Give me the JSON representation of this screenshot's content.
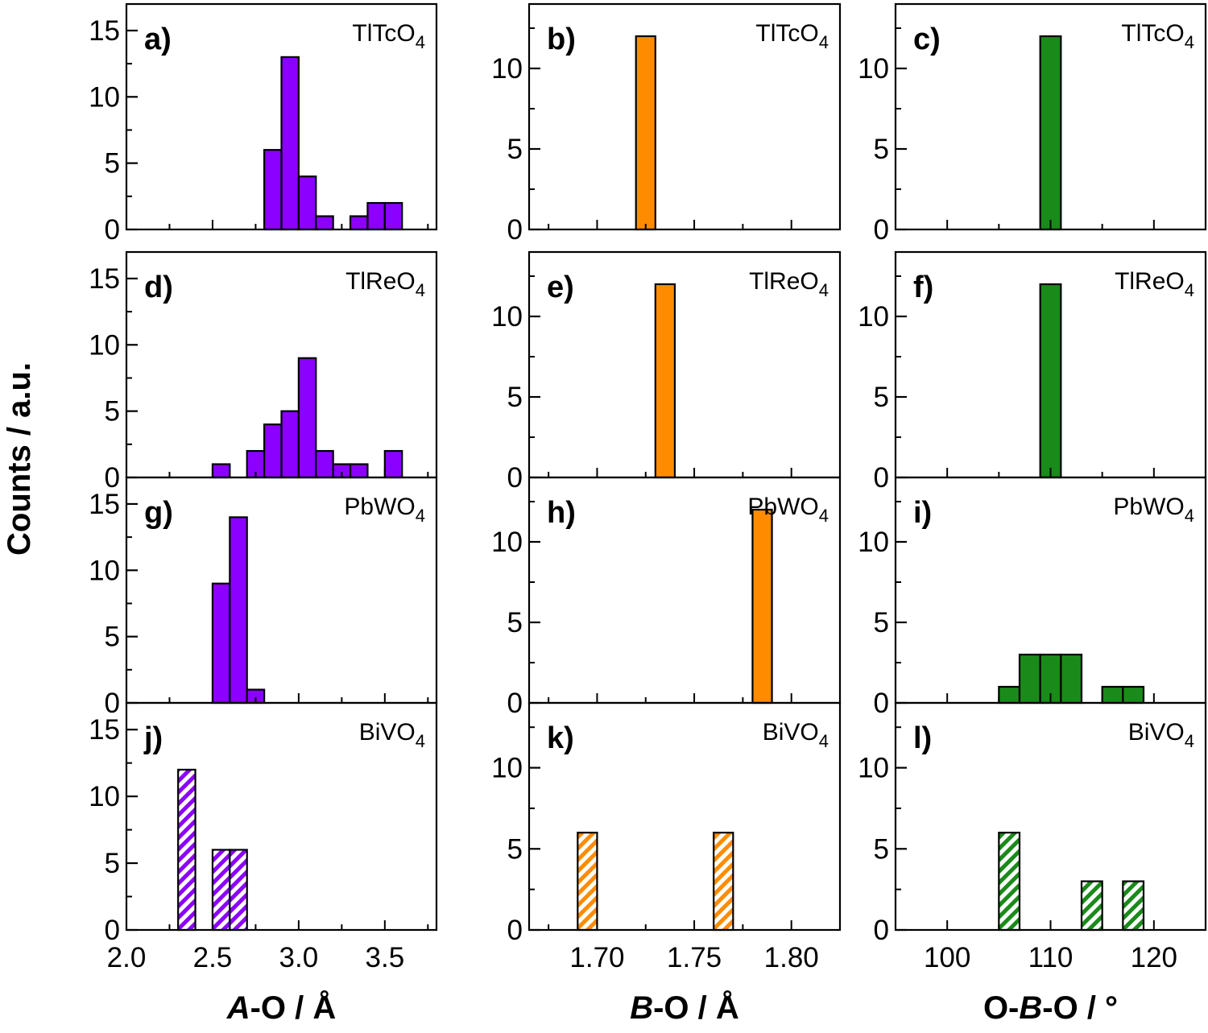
{
  "figure": {
    "y_axis_title": "Counts / a.u.",
    "colors": {
      "purple": "#8B00FF",
      "orange": "#FF8C00",
      "green": "#1A8A1A"
    }
  },
  "chart_data": [
    {
      "id": "a",
      "panel_label": "a)",
      "compound": "TlTcO",
      "compound_sub": "4",
      "type": "bar",
      "column": "A-O",
      "color": "#8B00FF",
      "hatched": false,
      "bin_width": 0.1,
      "x": [
        2.85,
        2.95,
        3.05,
        3.15,
        3.35,
        3.45,
        3.55
      ],
      "values": [
        6,
        13,
        4,
        1,
        1,
        2,
        2
      ],
      "xlim": [
        2.0,
        3.8
      ],
      "ylim": [
        0,
        17
      ],
      "yticks": [
        0,
        5,
        10,
        15
      ]
    },
    {
      "id": "b",
      "panel_label": "b)",
      "compound": "TlTcO",
      "compound_sub": "4",
      "type": "bar",
      "column": "B-O",
      "color": "#FF8C00",
      "hatched": false,
      "bin_width": 0.01,
      "x": [
        1.725
      ],
      "values": [
        12
      ],
      "xlim": [
        1.665,
        1.825
      ],
      "ylim": [
        0,
        14
      ],
      "yticks": [
        0,
        5,
        10
      ]
    },
    {
      "id": "c",
      "panel_label": "c)",
      "compound": "TlTcO",
      "compound_sub": "4",
      "type": "bar",
      "column": "O-B-O",
      "color": "#1A8A1A",
      "hatched": false,
      "bin_width": 2,
      "x": [
        110
      ],
      "values": [
        12
      ],
      "xlim": [
        95,
        125
      ],
      "ylim": [
        0,
        14
      ],
      "yticks": [
        0,
        5,
        10
      ]
    },
    {
      "id": "d",
      "panel_label": "d)",
      "compound": "TlReO",
      "compound_sub": "4",
      "type": "bar",
      "column": "A-O",
      "color": "#8B00FF",
      "hatched": false,
      "bin_width": 0.1,
      "x": [
        2.55,
        2.75,
        2.85,
        2.95,
        3.05,
        3.15,
        3.25,
        3.35,
        3.55
      ],
      "values": [
        1,
        2,
        4,
        5,
        9,
        2,
        1,
        1,
        2
      ],
      "xlim": [
        2.0,
        3.8
      ],
      "ylim": [
        0,
        17
      ],
      "yticks": [
        0,
        5,
        10,
        15
      ]
    },
    {
      "id": "e",
      "panel_label": "e)",
      "compound": "TlReO",
      "compound_sub": "4",
      "type": "bar",
      "column": "B-O",
      "color": "#FF8C00",
      "hatched": false,
      "bin_width": 0.01,
      "x": [
        1.735
      ],
      "values": [
        12
      ],
      "xlim": [
        1.665,
        1.825
      ],
      "ylim": [
        0,
        14
      ],
      "yticks": [
        0,
        5,
        10
      ]
    },
    {
      "id": "f",
      "panel_label": "f)",
      "compound": "TlReO",
      "compound_sub": "4",
      "type": "bar",
      "column": "O-B-O",
      "color": "#1A8A1A",
      "hatched": false,
      "bin_width": 2,
      "x": [
        110
      ],
      "values": [
        12
      ],
      "xlim": [
        95,
        125
      ],
      "ylim": [
        0,
        14
      ],
      "yticks": [
        0,
        5,
        10
      ]
    },
    {
      "id": "g",
      "panel_label": "g)",
      "compound": "PbWO",
      "compound_sub": "4",
      "type": "bar",
      "column": "A-O",
      "color": "#8B00FF",
      "hatched": false,
      "bin_width": 0.1,
      "x": [
        2.55,
        2.65,
        2.75
      ],
      "values": [
        9,
        14,
        1
      ],
      "xlim": [
        2.0,
        3.8
      ],
      "ylim": [
        0,
        17
      ],
      "yticks": [
        0,
        5,
        10,
        15
      ]
    },
    {
      "id": "h",
      "panel_label": "h)",
      "compound": "PbWO",
      "compound_sub": "4",
      "type": "bar",
      "column": "B-O",
      "color": "#FF8C00",
      "hatched": false,
      "bin_width": 0.01,
      "x": [
        1.785
      ],
      "values": [
        12
      ],
      "xlim": [
        1.665,
        1.825
      ],
      "ylim": [
        0,
        14
      ],
      "yticks": [
        0,
        5,
        10
      ]
    },
    {
      "id": "i",
      "panel_label": "i)",
      "compound": "PbWO",
      "compound_sub": "4",
      "type": "bar",
      "column": "O-B-O",
      "color": "#1A8A1A",
      "hatched": false,
      "bin_width": 2,
      "x": [
        106,
        108,
        110,
        112,
        116,
        118
      ],
      "values": [
        1,
        3,
        3,
        3,
        1,
        1
      ],
      "xlim": [
        95,
        125
      ],
      "ylim": [
        0,
        14
      ],
      "yticks": [
        0,
        5,
        10
      ]
    },
    {
      "id": "j",
      "panel_label": "j)",
      "compound": "BiVO",
      "compound_sub": "4",
      "type": "bar",
      "column": "A-O",
      "color": "#8B00FF",
      "hatched": true,
      "bin_width": 0.1,
      "x": [
        2.35,
        2.55,
        2.65
      ],
      "values": [
        12,
        6,
        6
      ],
      "xlim": [
        2.0,
        3.8
      ],
      "ylim": [
        0,
        17
      ],
      "yticks": [
        0,
        5,
        10,
        15
      ],
      "xticks": [
        "2.0",
        "2.5",
        "3.0",
        "3.5"
      ],
      "xtick_values": [
        2.0,
        2.5,
        3.0,
        3.5
      ],
      "xlabel_italic": "A",
      "xlabel_rest": "-O / Å"
    },
    {
      "id": "k",
      "panel_label": "k)",
      "compound": "BiVO",
      "compound_sub": "4",
      "type": "bar",
      "column": "B-O",
      "color": "#FF8C00",
      "hatched": true,
      "bin_width": 0.01,
      "x": [
        1.695,
        1.765
      ],
      "values": [
        6,
        6
      ],
      "xlim": [
        1.665,
        1.825
      ],
      "ylim": [
        0,
        14
      ],
      "yticks": [
        0,
        5,
        10
      ],
      "xticks": [
        "1.70",
        "1.75",
        "1.80"
      ],
      "xtick_values": [
        1.7,
        1.75,
        1.8
      ],
      "xlabel_italic": "B",
      "xlabel_rest": "-O / Å"
    },
    {
      "id": "l",
      "panel_label": "l)",
      "compound": "BiVO",
      "compound_sub": "4",
      "type": "bar",
      "column": "O-B-O",
      "color": "#1A8A1A",
      "hatched": true,
      "bin_width": 2,
      "x": [
        106,
        114,
        118
      ],
      "values": [
        6,
        3,
        3
      ],
      "xlim": [
        95,
        125
      ],
      "ylim": [
        0,
        14
      ],
      "yticks": [
        0,
        5,
        10
      ],
      "xticks": [
        "100",
        "110",
        "120"
      ],
      "xtick_values": [
        100,
        110,
        120
      ],
      "xlabel_prefix": "O-",
      "xlabel_italic": "B",
      "xlabel_rest": "-O / °"
    }
  ]
}
